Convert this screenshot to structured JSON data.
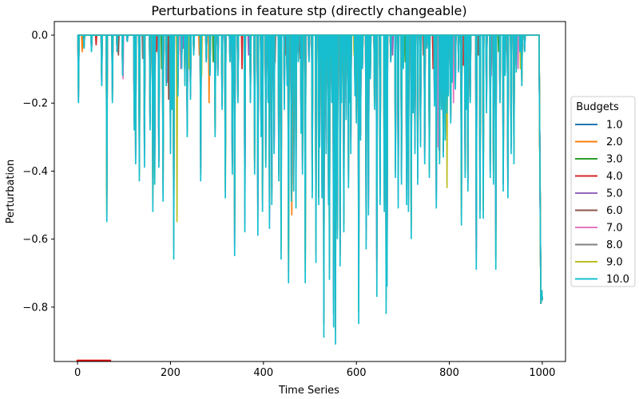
{
  "chart_data": {
    "type": "line",
    "title": "Perturbations in feature stp (directly changeable)",
    "xlabel": "Time Series",
    "ylabel": "Perturbation",
    "xlim": [
      -50,
      1050
    ],
    "ylim": [
      -0.96,
      0.04
    ],
    "xticks": [
      0,
      200,
      400,
      600,
      800,
      1000
    ],
    "xtick_labels": [
      "0",
      "200",
      "400",
      "600",
      "800",
      "1000"
    ],
    "yticks": [
      0.0,
      -0.2,
      -0.4,
      -0.6,
      -0.8
    ],
    "ytick_labels": [
      "0.0",
      "−0.2",
      "−0.4",
      "−0.6",
      "−0.8"
    ],
    "grid": false,
    "legend": {
      "title": "Budgets",
      "placement": "right-outside",
      "entries": [
        "1.0",
        "2.0",
        "3.0",
        "4.0",
        "5.0",
        "6.0",
        "7.0",
        "8.0",
        "9.0",
        "10.0"
      ]
    },
    "series_colors": [
      "#1f77b4",
      "#ff7f0e",
      "#2ca02c",
      "#d62728",
      "#9467bd",
      "#8c564b",
      "#e377c2",
      "#7f7f7f",
      "#bcbd22",
      "#17becf"
    ],
    "x_range": [
      0,
      1000
    ],
    "main_spikes": [
      [
        2,
        -0.2
      ],
      [
        14,
        -0.04
      ],
      [
        30,
        -0.05
      ],
      [
        52,
        -0.15
      ],
      [
        63,
        -0.55
      ],
      [
        75,
        -0.2
      ],
      [
        85,
        -0.05
      ],
      [
        97,
        -0.12
      ],
      [
        107,
        -0.02
      ],
      [
        122,
        -0.28
      ],
      [
        125,
        -0.38
      ],
      [
        133,
        -0.43
      ],
      [
        144,
        -0.39
      ],
      [
        156,
        -0.28
      ],
      [
        162,
        -0.52
      ],
      [
        166,
        -0.44
      ],
      [
        175,
        -0.39
      ],
      [
        184,
        -0.49
      ],
      [
        191,
        -0.15
      ],
      [
        200,
        -0.35
      ],
      [
        203,
        -0.22
      ],
      [
        207,
        -0.66
      ],
      [
        216,
        -0.18
      ],
      [
        224,
        -0.1
      ],
      [
        231,
        -0.15
      ],
      [
        236,
        -0.3
      ],
      [
        243,
        -0.19
      ],
      [
        250,
        -0.06
      ],
      [
        265,
        -0.43
      ],
      [
        277,
        -0.08
      ],
      [
        285,
        -0.12
      ],
      [
        296,
        -0.3
      ],
      [
        302,
        -0.12
      ],
      [
        311,
        -0.22
      ],
      [
        318,
        -0.48
      ],
      [
        328,
        -0.08
      ],
      [
        333,
        -0.41
      ],
      [
        338,
        -0.65
      ],
      [
        345,
        -0.2
      ],
      [
        360,
        -0.58
      ],
      [
        372,
        -0.2
      ],
      [
        381,
        -0.41
      ],
      [
        388,
        -0.59
      ],
      [
        395,
        -0.3
      ],
      [
        398,
        -0.52
      ],
      [
        405,
        -0.39
      ],
      [
        410,
        -0.2
      ],
      [
        413,
        -0.57
      ],
      [
        418,
        -0.5
      ],
      [
        423,
        -0.35
      ],
      [
        433,
        -0.43
      ],
      [
        438,
        -0.66
      ],
      [
        445,
        -0.22
      ],
      [
        451,
        -0.15
      ],
      [
        454,
        -0.73
      ],
      [
        460,
        -0.49
      ],
      [
        465,
        -0.46
      ],
      [
        470,
        -0.51
      ],
      [
        475,
        -0.08
      ],
      [
        481,
        -0.29
      ],
      [
        484,
        -0.41
      ],
      [
        490,
        -0.73
      ],
      [
        498,
        -0.08
      ],
      [
        505,
        -0.48
      ],
      [
        513,
        -0.67
      ],
      [
        519,
        -0.5
      ],
      [
        521,
        -0.33
      ],
      [
        526,
        -0.48
      ],
      [
        530,
        -0.89
      ],
      [
        535,
        -0.35
      ],
      [
        540,
        -0.5
      ],
      [
        542,
        -0.72
      ],
      [
        547,
        -0.2
      ],
      [
        551,
        -0.86
      ],
      [
        555,
        -0.91
      ],
      [
        559,
        -0.6
      ],
      [
        565,
        -0.68
      ],
      [
        568,
        -0.2
      ],
      [
        573,
        -0.58
      ],
      [
        578,
        -0.25
      ],
      [
        583,
        -0.45
      ],
      [
        586,
        -0.2
      ],
      [
        588,
        -0.35
      ],
      [
        597,
        -0.18
      ],
      [
        600,
        -0.26
      ],
      [
        605,
        -0.85
      ],
      [
        609,
        -0.31
      ],
      [
        613,
        -0.1
      ],
      [
        621,
        -0.63
      ],
      [
        626,
        -0.53
      ],
      [
        630,
        -0.13
      ],
      [
        639,
        -0.22
      ],
      [
        644,
        -0.77
      ],
      [
        651,
        -0.5
      ],
      [
        660,
        -0.52
      ],
      [
        664,
        -0.82
      ],
      [
        666,
        -0.74
      ],
      [
        674,
        -0.08
      ],
      [
        684,
        -0.42
      ],
      [
        690,
        -0.51
      ],
      [
        697,
        -0.44
      ],
      [
        701,
        -0.1
      ],
      [
        708,
        -0.5
      ],
      [
        712,
        -0.52
      ],
      [
        718,
        -0.6
      ],
      [
        722,
        -0.23
      ],
      [
        726,
        -0.35
      ],
      [
        732,
        -0.44
      ],
      [
        738,
        -0.33
      ],
      [
        747,
        -0.38
      ],
      [
        752,
        -0.04
      ],
      [
        757,
        -0.42
      ],
      [
        768,
        -0.21
      ],
      [
        772,
        -0.51
      ],
      [
        779,
        -0.38
      ],
      [
        783,
        -0.22
      ],
      [
        787,
        -0.36
      ],
      [
        791,
        -0.31
      ],
      [
        795,
        -0.23
      ],
      [
        798,
        -0.18
      ],
      [
        803,
        -0.26
      ],
      [
        806,
        -0.14
      ],
      [
        813,
        -0.16
      ],
      [
        820,
        -0.11
      ],
      [
        826,
        -0.56
      ],
      [
        834,
        -0.42
      ],
      [
        837,
        -0.22
      ],
      [
        840,
        -0.46
      ],
      [
        845,
        -0.2
      ],
      [
        858,
        -0.69
      ],
      [
        866,
        -0.54
      ],
      [
        873,
        -0.54
      ],
      [
        880,
        -0.23
      ],
      [
        888,
        -0.42
      ],
      [
        895,
        -0.44
      ],
      [
        900,
        -0.69
      ],
      [
        909,
        -0.2
      ],
      [
        916,
        -0.46
      ],
      [
        920,
        -0.12
      ],
      [
        926,
        -0.48
      ],
      [
        933,
        -0.35
      ],
      [
        939,
        -0.38
      ],
      [
        944,
        -0.11
      ],
      [
        952,
        -0.05
      ],
      [
        956,
        -0.15
      ],
      [
        962,
        -0.05
      ],
      [
        998,
        -0.79
      ],
      [
        1000,
        -0.76
      ]
    ],
    "minor_spikes": [
      [
        10,
        -0.05,
        1
      ],
      [
        40,
        -0.03,
        3
      ],
      [
        88,
        -0.06,
        5
      ],
      [
        98,
        -0.13,
        6
      ],
      [
        140,
        -0.07,
        7
      ],
      [
        170,
        -0.05,
        3
      ],
      [
        181,
        -0.1,
        2
      ],
      [
        194,
        -0.14,
        4
      ],
      [
        196,
        -0.19,
        5
      ],
      [
        214,
        -0.55,
        8
      ],
      [
        222,
        -0.1,
        6
      ],
      [
        228,
        -0.04,
        4
      ],
      [
        240,
        -0.1,
        8
      ],
      [
        262,
        -0.06,
        1
      ],
      [
        267,
        -0.12,
        8
      ],
      [
        283,
        -0.2,
        1
      ],
      [
        292,
        -0.08,
        2
      ],
      [
        317,
        -0.06,
        6
      ],
      [
        354,
        -0.1,
        3
      ],
      [
        368,
        -0.06,
        4
      ],
      [
        425,
        -0.08,
        5
      ],
      [
        448,
        -0.06,
        3
      ],
      [
        461,
        -0.53,
        1
      ],
      [
        479,
        -0.07,
        5
      ],
      [
        497,
        -0.06,
        6
      ],
      [
        567,
        -0.06,
        2
      ],
      [
        595,
        -0.06,
        8
      ],
      [
        610,
        -0.1,
        1
      ],
      [
        640,
        -0.07,
        3
      ],
      [
        660,
        -0.1,
        5
      ],
      [
        678,
        -0.06,
        4
      ],
      [
        705,
        -0.08,
        2
      ],
      [
        744,
        -0.06,
        5
      ],
      [
        765,
        -0.1,
        3
      ],
      [
        776,
        -0.33,
        6
      ],
      [
        778,
        -0.34,
        4
      ],
      [
        795,
        -0.45,
        8
      ],
      [
        809,
        -0.2,
        6
      ],
      [
        830,
        -0.09,
        3
      ],
      [
        842,
        -0.15,
        1
      ],
      [
        862,
        -0.06,
        5
      ],
      [
        890,
        -0.12,
        4
      ],
      [
        906,
        -0.05,
        2
      ],
      [
        948,
        -0.1,
        6
      ],
      [
        953,
        -0.1,
        8
      ]
    ],
    "red_markers": {
      "x_from": 0,
      "x_to": 70,
      "y": -0.96
    }
  }
}
